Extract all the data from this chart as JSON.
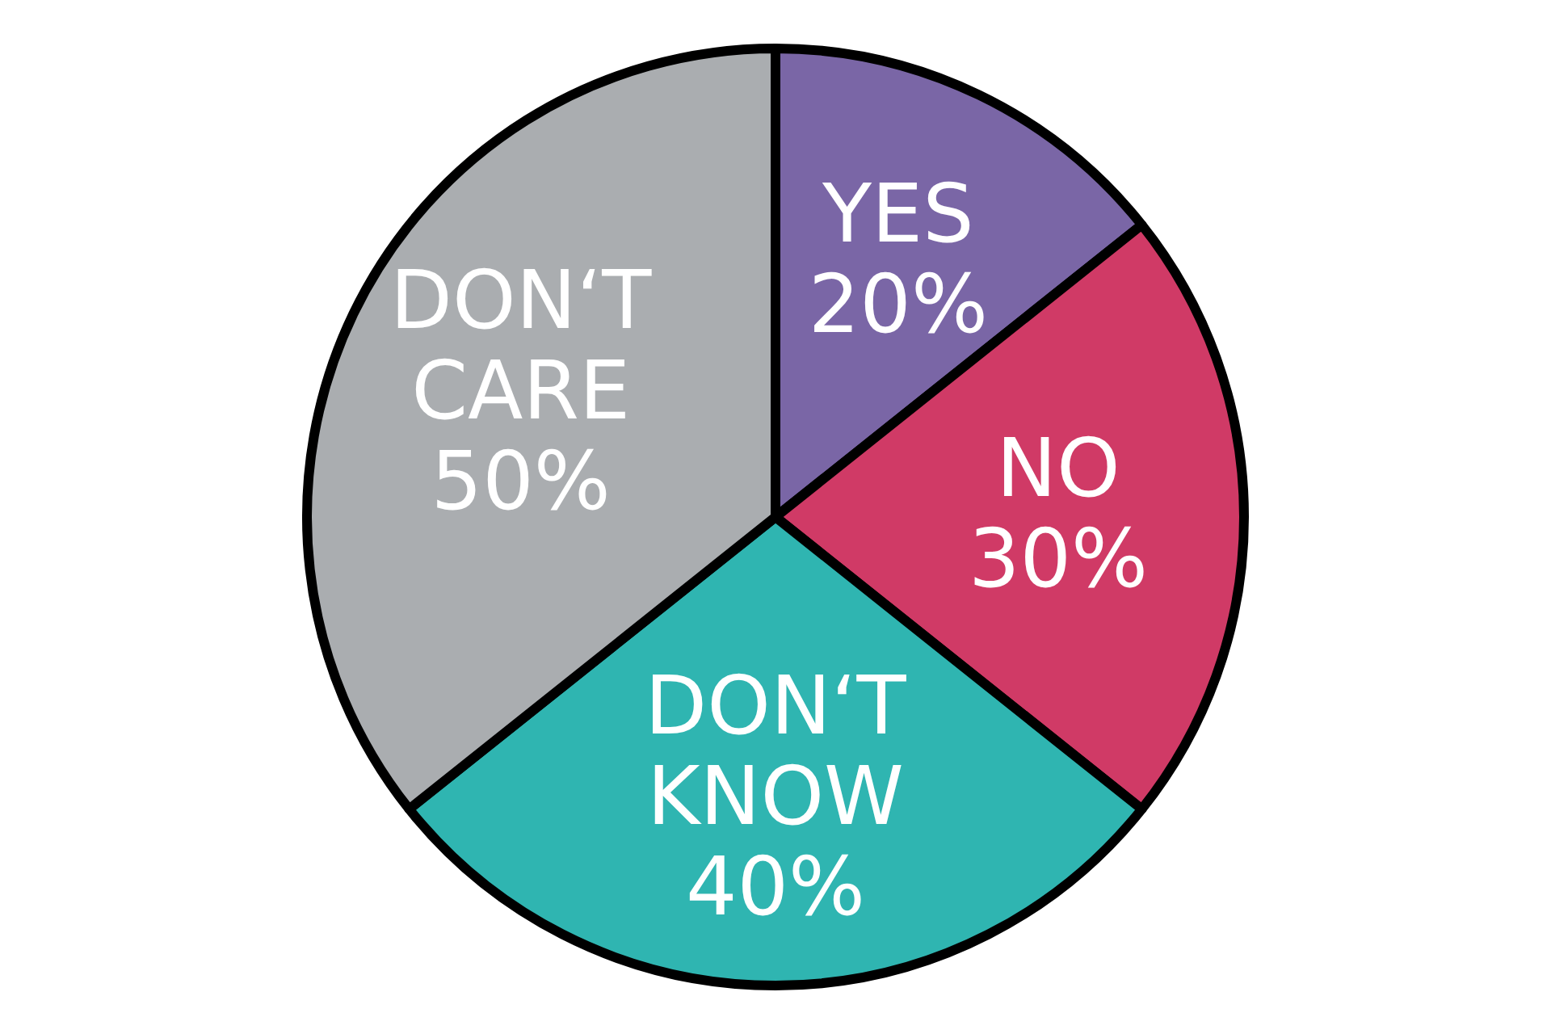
{
  "chart_data": {
    "type": "pie",
    "categories": [
      "YES",
      "NO",
      "DON‘T KNOW",
      "DON‘T CARE"
    ],
    "values": [
      20,
      30,
      40,
      50
    ],
    "value_labels": [
      "20%",
      "30%",
      "40%",
      "50%"
    ],
    "colors": [
      "#7a66a6",
      "#d03a66",
      "#2fb5b1",
      "#aaadb0"
    ]
  }
}
